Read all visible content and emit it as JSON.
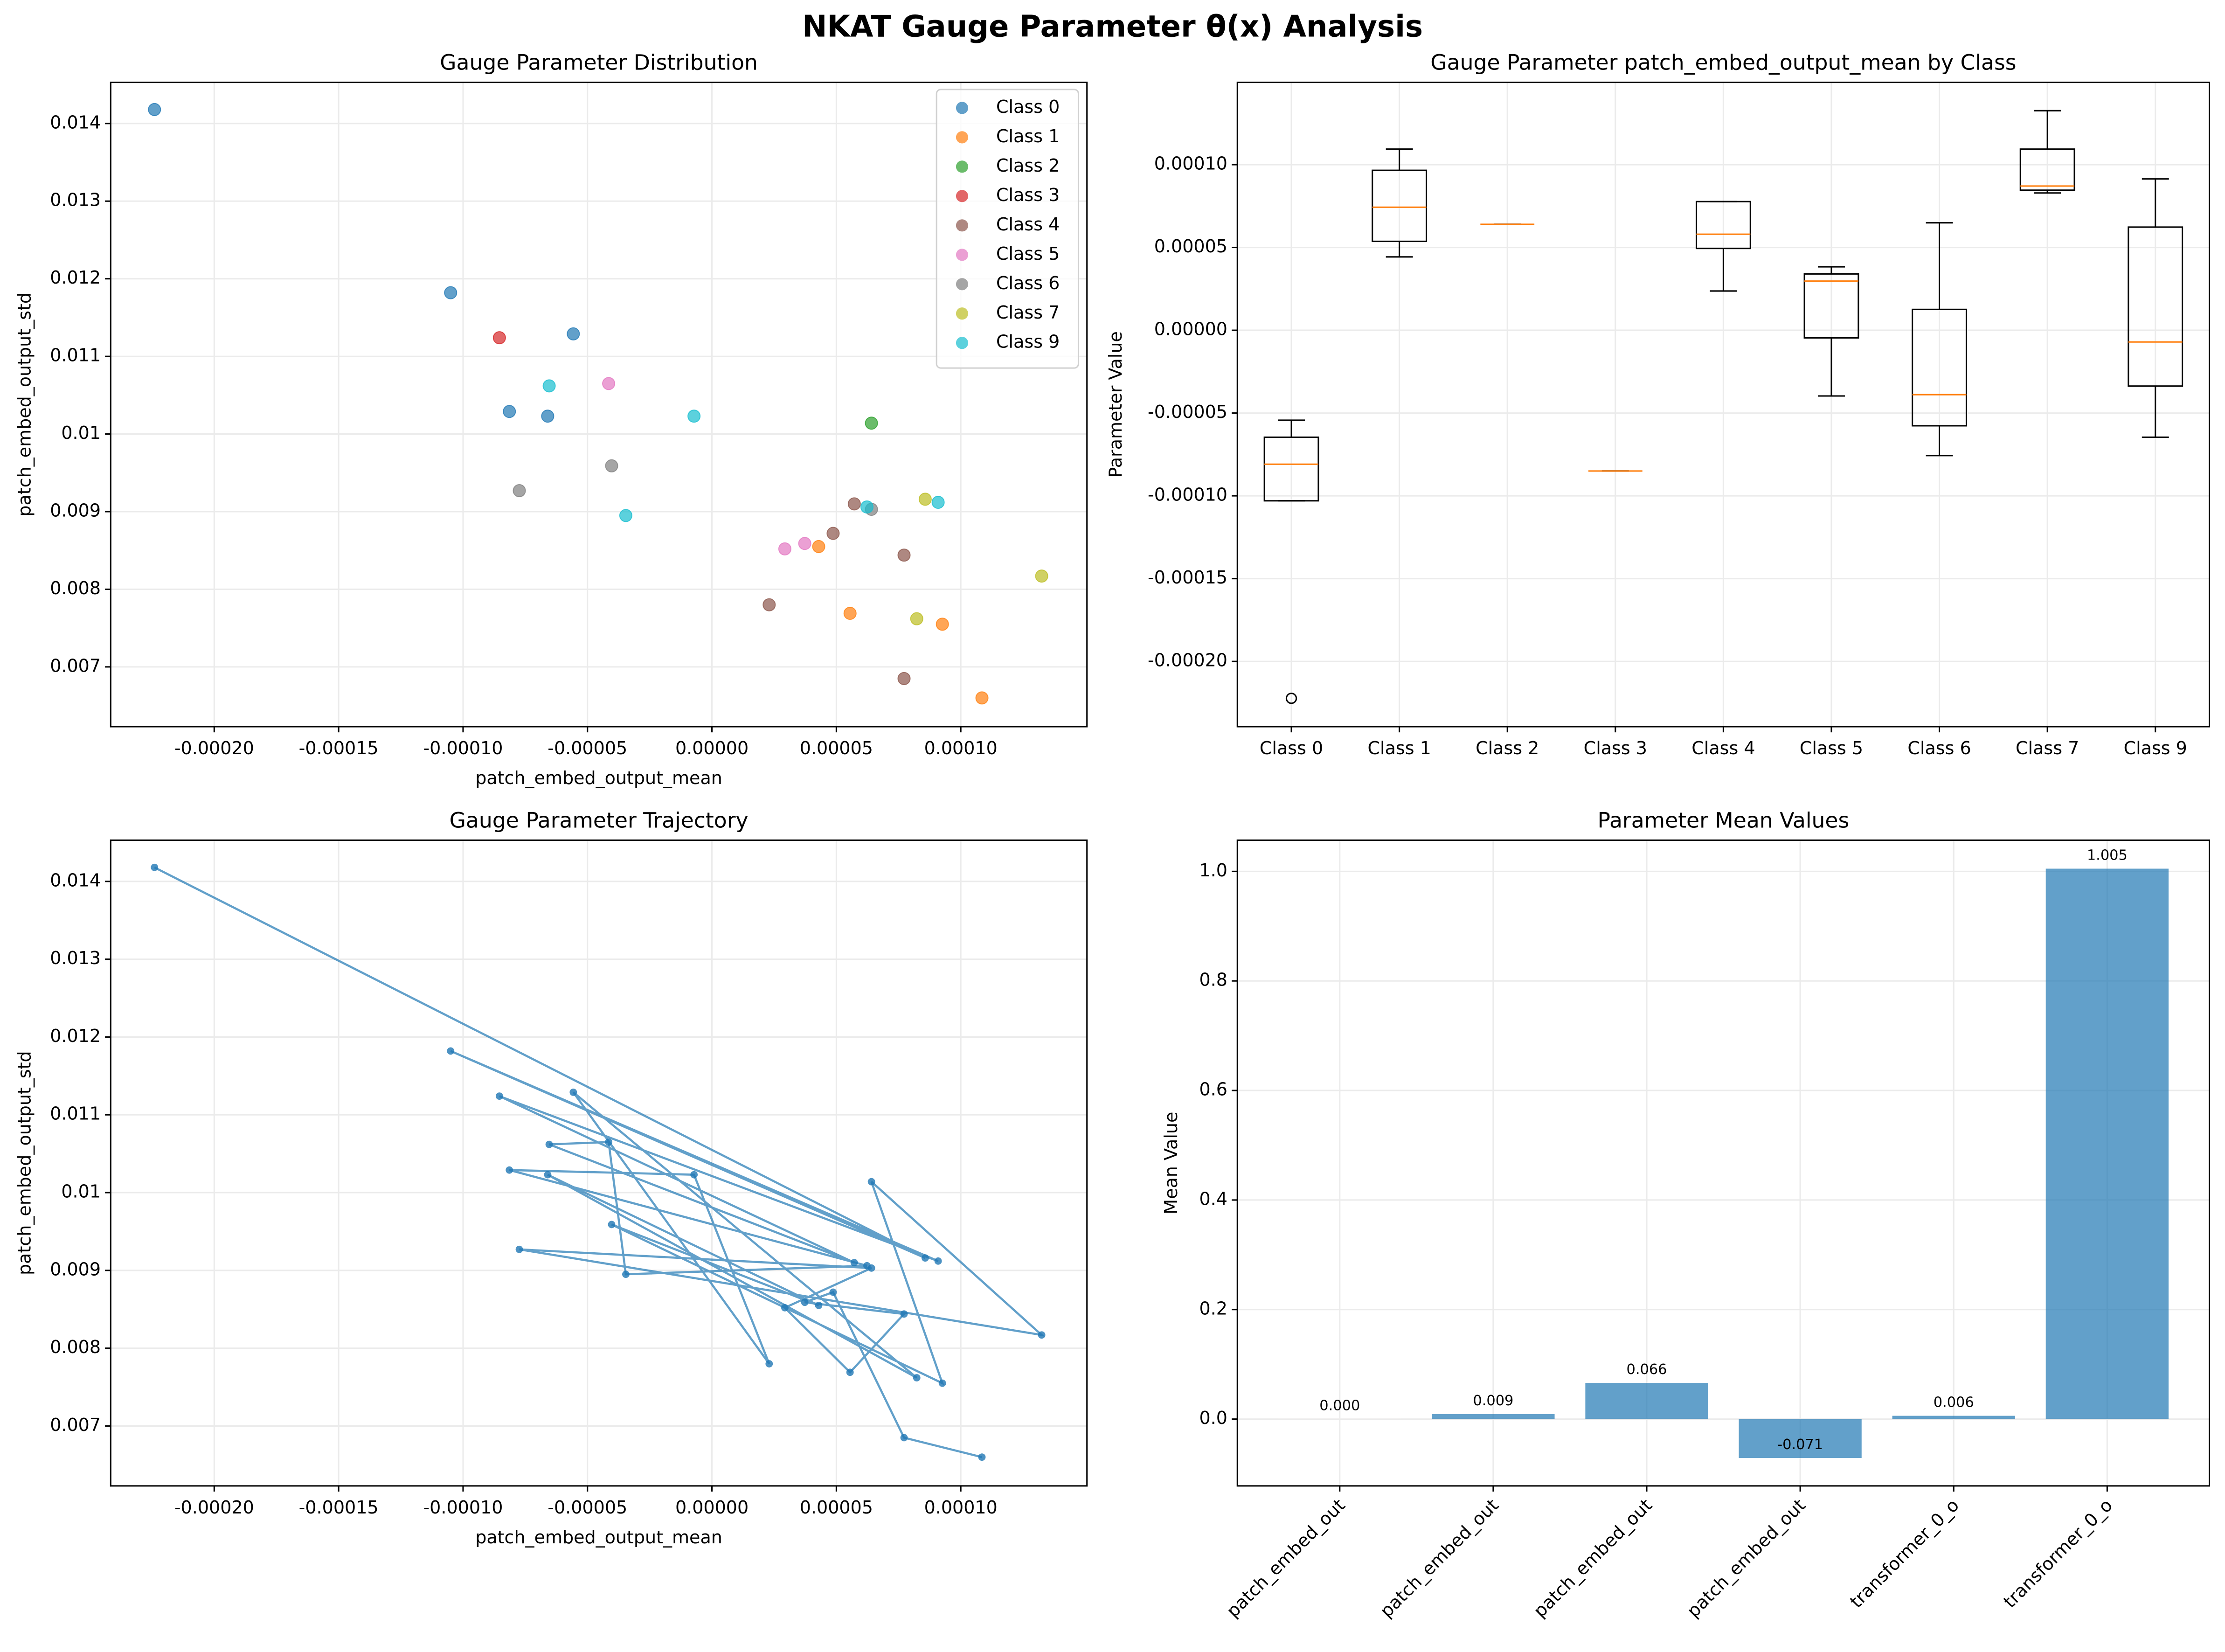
{
  "title": "NKAT Gauge Parameter θ(x) Analysis",
  "chart_data": [
    {
      "type": "scatter",
      "title": "Gauge Parameter Distribution",
      "xlabel": "patch_embed_output_mean",
      "ylabel": "patch_embed_output_std",
      "series": [
        {
          "name": "Class 0",
          "color": "#1f77b4",
          "x": [
            -0.000224,
            -0.000105,
            -5.57e-05,
            -8.14e-05,
            -6.6e-05
          ],
          "values": [
            0.01418,
            0.01182,
            0.01129,
            0.01029,
            0.01023
          ]
        },
        {
          "name": "Class 1",
          "color": "#ff7f0e",
          "x": [
            4.29e-05,
            5.55e-05,
            9.26e-05,
            0.0001085
          ],
          "values": [
            0.00855,
            0.00769,
            0.00755,
            0.0066
          ]
        },
        {
          "name": "Class 2",
          "color": "#2ca02c",
          "x": [
            6.41e-05
          ],
          "values": [
            0.01014
          ]
        },
        {
          "name": "Class 3",
          "color": "#d62728",
          "x": [
            -8.54e-05
          ],
          "values": [
            0.01124
          ]
        },
        {
          "name": "Class 4",
          "color": "#8c564b",
          "x": [
            2.3e-05,
            4.87e-05,
            5.72e-05,
            7.72e-05,
            7.72e-05
          ],
          "values": [
            0.0078,
            0.00872,
            0.0091,
            0.00844,
            0.00685
          ]
        },
        {
          "name": "Class 5",
          "color": "#e377c2",
          "x": [
            2.93e-05,
            3.73e-05,
            -4.15e-05
          ],
          "values": [
            0.00852,
            0.00859,
            0.01065
          ]
        },
        {
          "name": "Class 6",
          "color": "#7f7f7f",
          "x": [
            -7.74e-05,
            -4.03e-05,
            6.41e-05
          ],
          "values": [
            0.00927,
            0.00959,
            0.00903
          ]
        },
        {
          "name": "Class 7",
          "color": "#bcbd22",
          "x": [
            8.23e-05,
            8.57e-05,
            0.0001325
          ],
          "values": [
            0.00762,
            0.00916,
            0.00817
          ]
        },
        {
          "name": "Class 9",
          "color": "#17becf",
          "x": [
            -6.54e-05,
            -7.2e-06,
            -3.46e-05,
            6.23e-05,
            9.09e-05
          ],
          "values": [
            0.01062,
            0.01023,
            0.00895,
            0.00906,
            0.00912
          ]
        }
      ],
      "xlim": [
        -0.0002416,
        0.0001507
      ],
      "ylim": [
        0.00623,
        0.01453
      ],
      "xticks": [
        {
          "value": -0.0002,
          "label": "-0.00020"
        },
        {
          "value": -0.00015,
          "label": "-0.00015"
        },
        {
          "value": -0.0001,
          "label": "-0.00010"
        },
        {
          "value": -5e-05,
          "label": "-0.00005"
        },
        {
          "value": 0,
          "label": "0.00000"
        },
        {
          "value": 5e-05,
          "label": "0.00005"
        },
        {
          "value": 0.0001,
          "label": "0.00010"
        }
      ],
      "yticks": [
        0.007,
        0.008,
        0.009,
        0.01,
        0.011,
        0.012,
        0.013,
        0.014
      ],
      "grid": true,
      "legend": "upper right"
    },
    {
      "type": "box",
      "title": "Gauge Parameter patch_embed_output_mean by Class",
      "ylabel": "Parameter Value",
      "categories": [
        "Class 0",
        "Class 1",
        "Class 2",
        "Class 3",
        "Class 4",
        "Class 5",
        "Class 6",
        "Class 7",
        "Class 9"
      ],
      "boxes": [
        {
          "low": -0.000103,
          "q1": -0.000103,
          "median": -8.09e-05,
          "q3": -6.46e-05,
          "high": -5.43e-05,
          "fliers": [
            -0.0002223
          ]
        },
        {
          "low": 4.43e-05,
          "q1": 5.37e-05,
          "median": 7.43e-05,
          "q3": 9.66e-05,
          "high": 0.0001094,
          "fliers": []
        },
        {
          "low": 6.4e-05,
          "q1": 6.4e-05,
          "median": 6.4e-05,
          "q3": 6.4e-05,
          "high": 6.4e-05,
          "fliers": []
        },
        {
          "low": -8.5e-05,
          "q1": -8.5e-05,
          "median": -8.5e-05,
          "q3": -8.5e-05,
          "high": -8.5e-05,
          "fliers": []
        },
        {
          "low": 2.37e-05,
          "q1": 4.94e-05,
          "median": 5.8e-05,
          "q3": 7.77e-05,
          "high": 7.77e-05,
          "fliers": []
        },
        {
          "low": -3.97e-05,
          "q1": -4.6e-06,
          "median": 2.97e-05,
          "q3": 3.4e-05,
          "high": 3.83e-05,
          "fliers": []
        },
        {
          "low": -7.57e-05,
          "q1": -5.77e-05,
          "median": -3.89e-05,
          "q3": 1.26e-05,
          "high": 6.49e-05,
          "fliers": []
        },
        {
          "low": 8.29e-05,
          "q1": 8.46e-05,
          "median": 8.71e-05,
          "q3": 0.0001094,
          "high": 0.0001326,
          "fliers": []
        },
        {
          "low": -6.46e-05,
          "q1": -3.37e-05,
          "median": -7.1e-06,
          "q3": 6.23e-05,
          "high": 9.14e-05,
          "fliers": []
        }
      ],
      "box_color": "#000000",
      "median_color": "#ff7f0e",
      "ylim": [
        -0.0002394,
        0.0001497
      ],
      "yticks": [
        {
          "value": -0.0002,
          "label": "-0.00020"
        },
        {
          "value": -0.00015,
          "label": "-0.00015"
        },
        {
          "value": -0.0001,
          "label": "-0.00010"
        },
        {
          "value": -5e-05,
          "label": "-0.00005"
        },
        {
          "value": 0,
          "label": "0.00000"
        },
        {
          "value": 5e-05,
          "label": "0.00005"
        },
        {
          "value": 0.0001,
          "label": "0.00010"
        }
      ],
      "grid": true
    },
    {
      "type": "line",
      "title": "Gauge Parameter Trajectory",
      "xlabel": "patch_embed_output_mean",
      "ylabel": "patch_embed_output_std",
      "color": "#1f77b4",
      "markers": true,
      "x": [
        -0.000224,
        8.57e-05,
        -0.000105,
        9.09e-05,
        -8.54e-05,
        5.72e-05,
        -6.54e-05,
        -4.15e-05,
        -3.46e-05,
        6.23e-05,
        -8.14e-05,
        -7.2e-06,
        2.3e-05,
        -5.57e-05,
        8.23e-05,
        -6.6e-05,
        4.29e-05,
        -4.03e-05,
        9.26e-05,
        6.41e-05,
        0.0001325,
        -7.74e-05,
        6.41e-05,
        2.93e-05,
        5.55e-05,
        7.72e-05,
        3.73e-05,
        4.87e-05,
        7.72e-05,
        0.0001085
      ],
      "values": [
        0.01418,
        0.00916,
        0.01182,
        0.00912,
        0.01124,
        0.0091,
        0.01062,
        0.01065,
        0.00895,
        0.00906,
        0.01029,
        0.01023,
        0.0078,
        0.01129,
        0.00762,
        0.01023,
        0.00855,
        0.00959,
        0.00755,
        0.01014,
        0.00817,
        0.00927,
        0.00903,
        0.00852,
        0.00769,
        0.00844,
        0.00859,
        0.00872,
        0.00685,
        0.0066
      ],
      "xlim": [
        -0.0002416,
        0.0001507
      ],
      "ylim": [
        0.00623,
        0.01453
      ],
      "xticks": [
        {
          "value": -0.0002,
          "label": "-0.00020"
        },
        {
          "value": -0.00015,
          "label": "-0.00015"
        },
        {
          "value": -0.0001,
          "label": "-0.00010"
        },
        {
          "value": -5e-05,
          "label": "-0.00005"
        },
        {
          "value": 0,
          "label": "0.00000"
        },
        {
          "value": 5e-05,
          "label": "0.00005"
        },
        {
          "value": 0.0001,
          "label": "0.00010"
        }
      ],
      "yticks": [
        0.007,
        0.008,
        0.009,
        0.01,
        0.011,
        0.012,
        0.013,
        0.014
      ],
      "grid": true
    },
    {
      "type": "bar",
      "title": "Parameter Mean Values",
      "ylabel": "Mean Value",
      "categories": [
        "patch_embed_out",
        "patch_embed_out",
        "patch_embed_out",
        "patch_embed_out",
        "transformer_0_o",
        "transformer_0_o"
      ],
      "values": [
        0.0003,
        0.009,
        0.066,
        -0.071,
        0.006,
        1.005
      ],
      "value_labels": [
        "0.000",
        "0.009",
        "0.066",
        "-0.071",
        "0.006",
        "1.005"
      ],
      "color": "#1f77b4",
      "ylim": [
        -0.122,
        1.057
      ],
      "yticks": [
        {
          "value": 0,
          "label": "0.0"
        },
        0.2,
        0.4,
        0.6,
        0.8,
        {
          "value": 1,
          "label": "1.0"
        }
      ],
      "grid": true
    }
  ]
}
